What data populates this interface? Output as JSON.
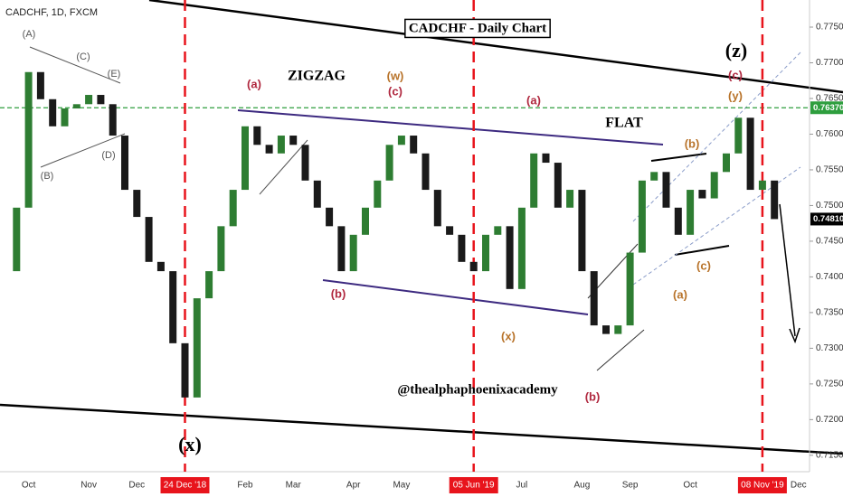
{
  "chart_data": {
    "type": "candlestick",
    "title": "CADCHF - Daily Chart",
    "symbol_label": "CADCHF, 1D, FXCM",
    "categories": [
      null,
      null,
      "Oct",
      null,
      null,
      null,
      null,
      "Nov",
      null,
      null,
      null,
      "Dec",
      null,
      null,
      null,
      "24 Dec '18",
      null,
      null,
      null,
      null,
      "Feb",
      null,
      null,
      null,
      "Mar",
      null,
      null,
      null,
      null,
      "Apr",
      null,
      null,
      null,
      "May",
      null,
      null,
      null,
      null,
      null,
      "05 Jun '19",
      null,
      null,
      null,
      "Jul",
      null,
      null,
      null,
      null,
      "Aug",
      null,
      null,
      null,
      "Sep",
      null,
      null,
      null,
      null,
      "Oct",
      null,
      null,
      null,
      null,
      null,
      "08 Nov '19",
      null,
      null,
      "Dec"
    ],
    "marked_dates": [
      "24 Dec '18",
      "05 Jun '19",
      "08 Nov '19"
    ],
    "values": [
      0.7408,
      0.7497,
      0.7687,
      0.7649,
      0.7611,
      0.7636,
      0.7642,
      0.7655,
      0.7642,
      0.7598,
      0.7522,
      0.7484,
      0.7421,
      0.7408,
      0.7307,
      0.7231,
      0.737,
      0.7408,
      0.7471,
      0.7522,
      0.7611,
      0.7585,
      0.7573,
      0.7598,
      0.7585,
      0.7535,
      0.7497,
      0.7471,
      0.7408,
      0.7459,
      0.7497,
      0.7535,
      0.7585,
      0.7598,
      0.7573,
      0.7522,
      0.7471,
      0.7459,
      0.7421,
      0.7408,
      0.7459,
      0.7471,
      0.7383,
      0.7497,
      0.7573,
      0.756,
      0.7497,
      0.7522,
      0.7408,
      0.7332,
      0.732,
      0.7332,
      0.7434,
      0.7535,
      0.7547,
      0.7497,
      0.7459,
      0.7522,
      0.751,
      0.7547,
      0.7573,
      0.7623,
      0.7522,
      0.7535,
      0.7481,
      null,
      null
    ],
    "up_color": "#2e7d32",
    "down_color": "#1a1a1a",
    "marker_color": "#e8141c",
    "ylim": [
      0.7127,
      0.7788
    ],
    "yticks": [
      {
        "value": 0.715,
        "label": "0.71500"
      },
      {
        "value": 0.72,
        "label": "0.72000"
      },
      {
        "value": 0.725,
        "label": "0.72500"
      },
      {
        "value": 0.73,
        "label": "0.73000"
      },
      {
        "value": 0.735,
        "label": "0.73500"
      },
      {
        "value": 0.74,
        "label": "0.74000"
      },
      {
        "value": 0.745,
        "label": "0.74500"
      },
      {
        "value": 0.75,
        "label": "0.75000"
      },
      {
        "value": 0.755,
        "label": "0.75500"
      },
      {
        "value": 0.76,
        "label": "0.76000"
      },
      {
        "value": 0.765,
        "label": "0.76500"
      },
      {
        "value": 0.77,
        "label": "0.77000"
      },
      {
        "value": 0.775,
        "label": "0.77500"
      }
    ],
    "level_line": {
      "value": 0.7637,
      "label": "0.76370",
      "color": "#2e9e3e"
    },
    "last_price": {
      "value": 0.7481,
      "label": "0.74810",
      "color": "#000000"
    },
    "annotations": [
      {
        "text": "(A)",
        "color": "#555555"
      },
      {
        "text": "(B)",
        "color": "#555555"
      },
      {
        "text": "(C)",
        "color": "#555555"
      },
      {
        "text": "(D)",
        "color": "#555555"
      },
      {
        "text": "(E)",
        "color": "#555555"
      },
      {
        "text": "ZIGZAG",
        "color": "#000000"
      },
      {
        "text": "(w)",
        "color": "#b8732a"
      },
      {
        "text": "(c)",
        "color": "#b0283f"
      },
      {
        "text": "(a)",
        "color": "#b0283f"
      },
      {
        "text": "(b)",
        "color": "#b0283f"
      },
      {
        "text": "(x)",
        "color": "#000000"
      },
      {
        "text": "(x)",
        "color": "#b8732a"
      },
      {
        "text": "(a)",
        "color": "#b0283f"
      },
      {
        "text": "FLAT",
        "color": "#000000"
      },
      {
        "text": "(b)",
        "color": "#b0283f"
      },
      {
        "text": "(z)",
        "color": "#000000"
      },
      {
        "text": "(c)",
        "color": "#b0283f"
      },
      {
        "text": "(y)",
        "color": "#b8732a"
      },
      {
        "text": "(b)",
        "color": "#b8732a"
      },
      {
        "text": "(c)",
        "color": "#b8732a"
      },
      {
        "text": "(a)",
        "color": "#b8732a"
      },
      {
        "text": "@thealphaphoenixacademy",
        "color": "#000000"
      }
    ]
  }
}
